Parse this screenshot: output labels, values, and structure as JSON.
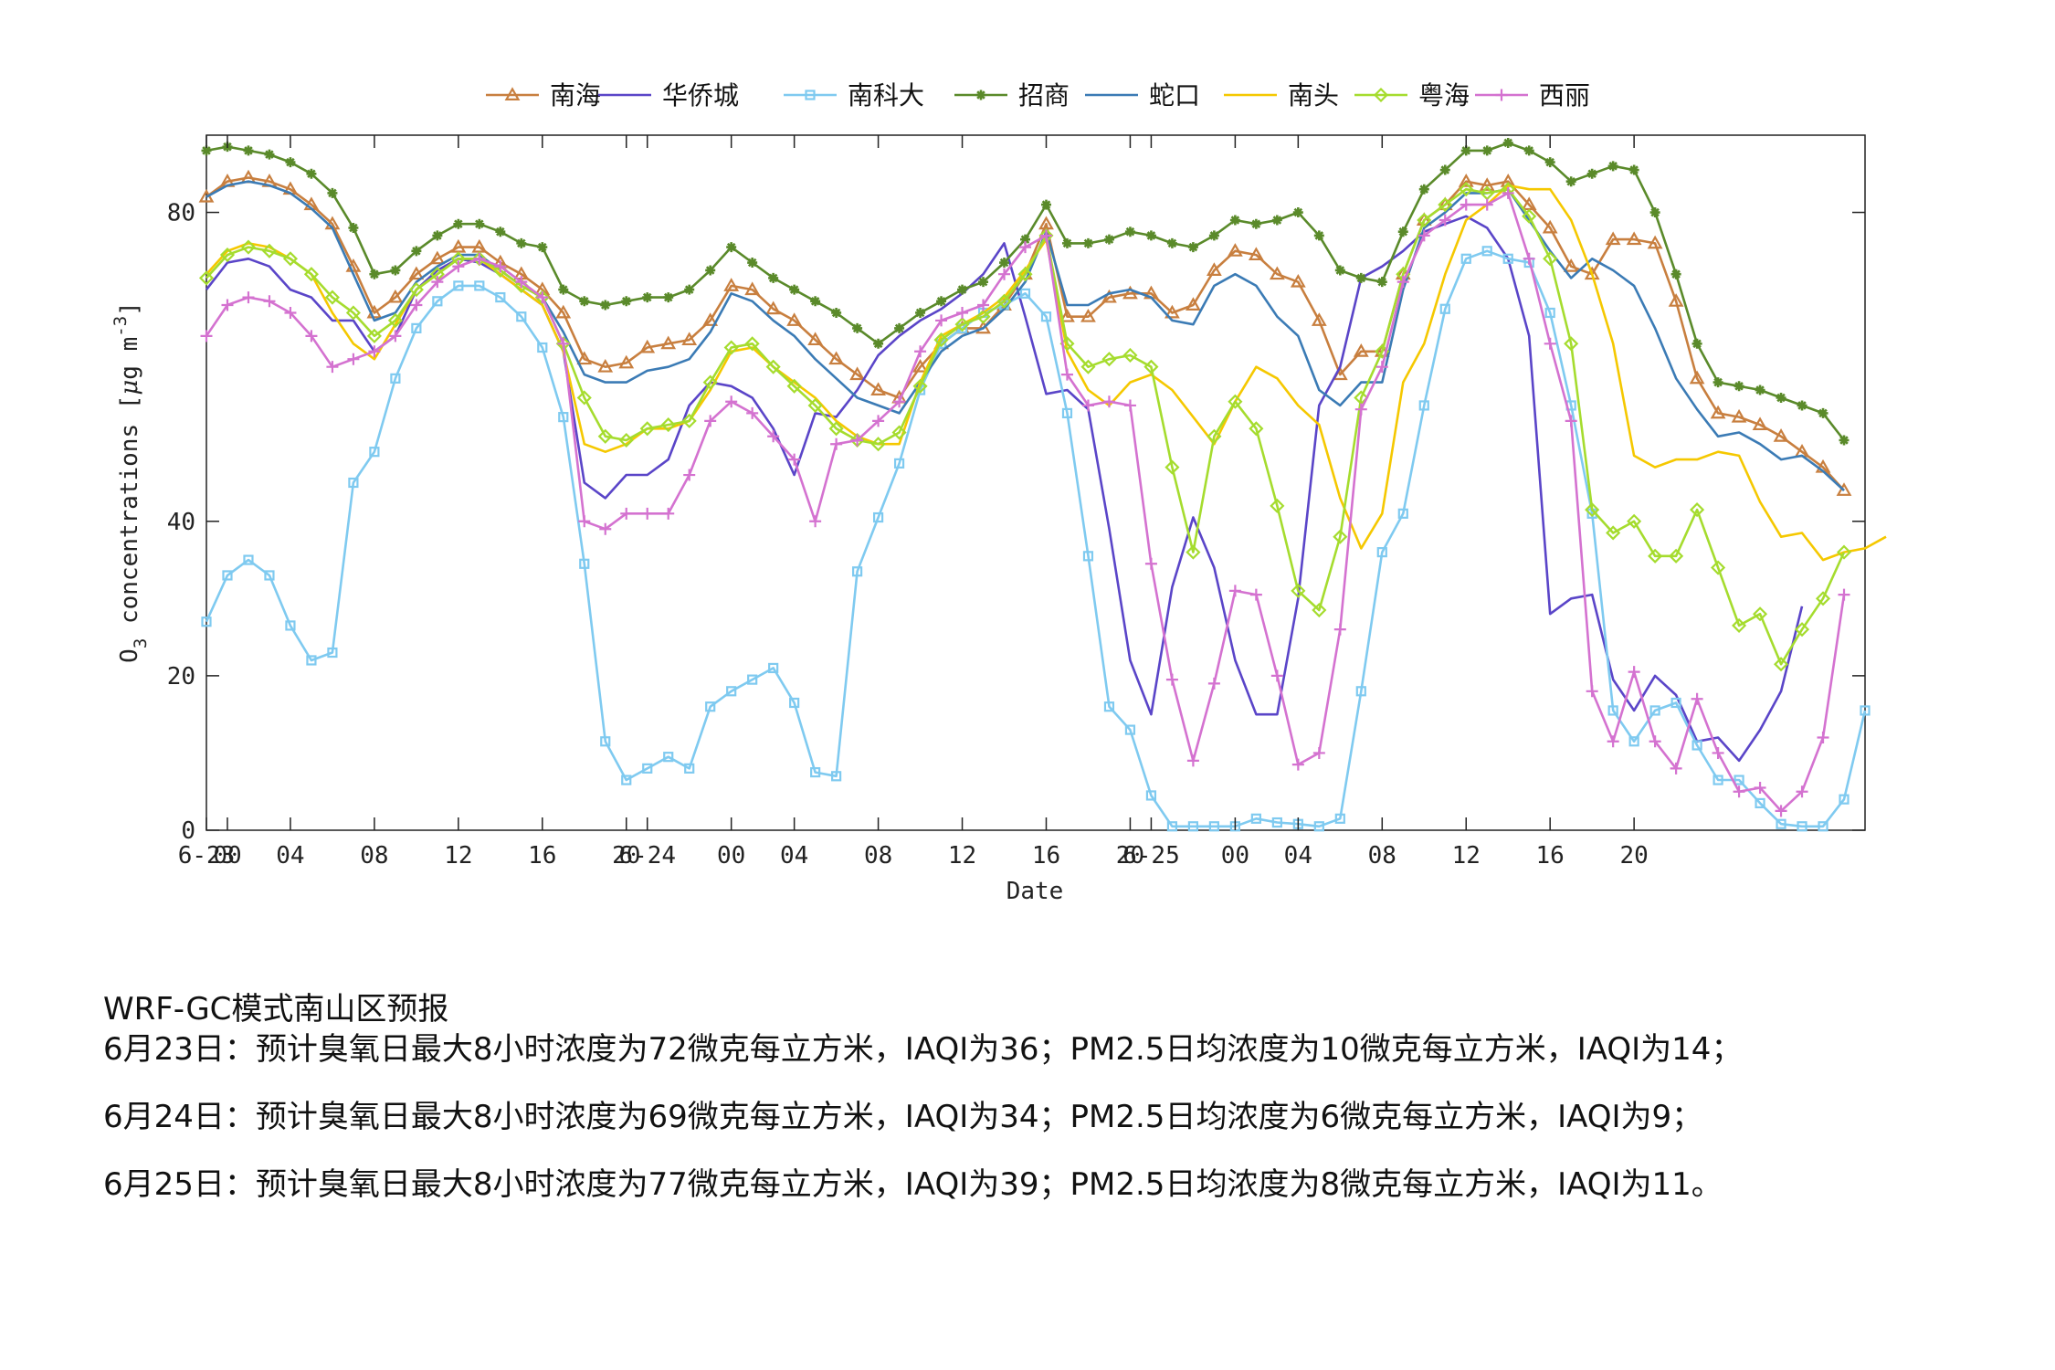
{
  "chart_data": {
    "type": "line",
    "ylabel": "O_3 concentrations [μg m^-3]",
    "xlabel": "Date",
    "ylim": [
      0,
      90
    ],
    "yticks": [
      0,
      20,
      40,
      80
    ],
    "x_tick_labels": [
      {
        "h": 0,
        "label": "6-23"
      },
      {
        "h": 1,
        "label": "00"
      },
      {
        "h": 4,
        "label": "04"
      },
      {
        "h": 8,
        "label": "08"
      },
      {
        "h": 12,
        "label": "12"
      },
      {
        "h": 16,
        "label": "16"
      },
      {
        "h": 20,
        "label": "20"
      },
      {
        "h": 21,
        "label": "6-24"
      },
      {
        "h": 25,
        "label": "00"
      },
      {
        "h": 28,
        "label": "04"
      },
      {
        "h": 32,
        "label": "08"
      },
      {
        "h": 36,
        "label": "12"
      },
      {
        "h": 40,
        "label": "16"
      },
      {
        "h": 44,
        "label": "20"
      },
      {
        "h": 45,
        "label": "6-25"
      },
      {
        "h": 49,
        "label": "00"
      },
      {
        "h": 52,
        "label": "04"
      },
      {
        "h": 56,
        "label": "08"
      },
      {
        "h": 60,
        "label": "12"
      },
      {
        "h": 64,
        "label": "16"
      },
      {
        "h": 68,
        "label": "20"
      }
    ],
    "x_range_hours": [
      0,
      79
    ],
    "grid": false,
    "legend_position": "top",
    "series": [
      {
        "name": "南海",
        "color": "#c87f3f",
        "marker": "triangle",
        "values": [
          82,
          84,
          84.5,
          84,
          83,
          81,
          78.5,
          73,
          67,
          69,
          72,
          74,
          75.5,
          75.5,
          73.5,
          72,
          70,
          67,
          61,
          60,
          60.5,
          62.5,
          63,
          63.5,
          66,
          70.5,
          70,
          67.5,
          66,
          63.5,
          61,
          59,
          57,
          56,
          60,
          63,
          65,
          65,
          68,
          72,
          78.5,
          66.5,
          66.5,
          69,
          69.5,
          69.5,
          67,
          68,
          72.5,
          75,
          74.5,
          72,
          71,
          66,
          59,
          62,
          62,
          72,
          79,
          81,
          84,
          83.5,
          84,
          81,
          78,
          73,
          72,
          76.5,
          76.5,
          76,
          68.5,
          58.5,
          54,
          53.5,
          52.5,
          51,
          49,
          47,
          44
        ]
      },
      {
        "name": "华侨城",
        "color": "#5a45c8",
        "values": [
          70,
          73.5,
          74,
          73,
          70,
          69,
          66,
          66,
          62,
          64,
          70,
          72.5,
          74,
          73.5,
          72,
          70,
          68,
          62,
          45,
          43,
          46,
          46,
          48,
          55,
          58,
          57.5,
          56,
          52,
          46,
          54,
          53.5,
          57,
          61.5,
          64,
          66,
          67.5,
          69.5,
          72,
          76,
          66.5,
          56.5,
          57,
          54.5,
          39,
          22,
          15,
          31.5,
          40.5,
          34,
          22,
          15,
          15,
          30,
          55,
          60,
          71.5,
          73,
          75,
          77.5,
          78.5,
          79.5,
          78,
          74,
          64,
          28,
          30,
          30.5,
          19.5,
          15.5,
          20,
          17.5,
          11.5,
          12,
          9,
          13,
          18,
          29
        ]
      },
      {
        "name": "南科大",
        "color": "#7fcaf0",
        "marker": "square",
        "values": [
          27,
          33,
          35,
          33,
          26.5,
          22,
          23,
          45,
          49,
          58.5,
          65,
          68.5,
          70.5,
          70.5,
          69,
          66.5,
          62.5,
          53.5,
          34.5,
          11.5,
          6.5,
          8,
          9.5,
          8,
          16,
          18,
          19.5,
          21,
          16.5,
          7.5,
          7,
          33.5,
          40.5,
          47.5,
          57,
          63,
          65,
          67,
          68,
          69.5,
          66.5,
          54,
          35.5,
          16,
          13,
          4.5,
          0.5,
          0.5,
          0.5,
          0.5,
          1.5,
          1,
          0.8,
          0.5,
          1.5,
          18,
          36,
          41,
          55,
          67.5,
          74,
          75,
          74,
          73.5,
          67,
          55,
          41,
          15.5,
          11.5,
          15.5,
          16.5,
          11,
          6.5,
          6.5,
          3.5,
          0.8,
          0.5,
          0.5,
          4,
          15.5
        ]
      },
      {
        "name": "招商",
        "color": "#5a8a2a",
        "marker": "star",
        "values": [
          88,
          88.5,
          88,
          87.5,
          86.5,
          85,
          82.5,
          78,
          72,
          72.5,
          75,
          77,
          78.5,
          78.5,
          77.5,
          76,
          75.5,
          70,
          68.5,
          68,
          68.5,
          69,
          69,
          70,
          72.5,
          75.5,
          73.5,
          71.5,
          70,
          68.5,
          67,
          65,
          63,
          65,
          67,
          68.5,
          70,
          71,
          73.5,
          76.5,
          81,
          76,
          76,
          76.5,
          77.5,
          77,
          76,
          75.5,
          77,
          79,
          78.5,
          79,
          80,
          77,
          72.5,
          71.5,
          71,
          77.5,
          83,
          85.5,
          88,
          88,
          89,
          88,
          86.5,
          84,
          85,
          86,
          85.5,
          80,
          72,
          63,
          58,
          57.5,
          57,
          56,
          55,
          54,
          50.5
        ]
      },
      {
        "name": "蛇口",
        "color": "#3b7bb5",
        "values": [
          82,
          83.5,
          84,
          83.5,
          82.5,
          80.5,
          78,
          72,
          66,
          67,
          71,
          73,
          74.5,
          74.5,
          72.5,
          70.5,
          69,
          64.5,
          59,
          58,
          58,
          59.5,
          60,
          61,
          64.5,
          69.5,
          68.5,
          66,
          64,
          61,
          58.5,
          56,
          55,
          54,
          58,
          62,
          64,
          65,
          67.5,
          71,
          77.5,
          68,
          68,
          69.5,
          70,
          69,
          66,
          65.5,
          70.5,
          72,
          70.5,
          66.5,
          64,
          57,
          55,
          58,
          58,
          70,
          78,
          80,
          82.5,
          82.5,
          83,
          79,
          75,
          71.5,
          74,
          72.5,
          70.5,
          65,
          58.5,
          54.5,
          51,
          51.5,
          50,
          48,
          48.5,
          46.5,
          44
        ]
      },
      {
        "name": "南头",
        "color": "#f5c800",
        "values": [
          72,
          75,
          76,
          75.5,
          74,
          72,
          67,
          63,
          61,
          65.5,
          70,
          72,
          74,
          74,
          72,
          70,
          68,
          62,
          50,
          49,
          50,
          52,
          52,
          53,
          57,
          62,
          62.5,
          60,
          58,
          56,
          53,
          51,
          50,
          50,
          58,
          64,
          65.5,
          67,
          69,
          72.5,
          76.5,
          62,
          57,
          55,
          58,
          59,
          57,
          53.5,
          50,
          55.5,
          60,
          58.5,
          55,
          52.5,
          43,
          36.5,
          41,
          58,
          63,
          72,
          79,
          81,
          83.5,
          83,
          83,
          79,
          72,
          63,
          48.5,
          47,
          48,
          48,
          49,
          48.5,
          42.5,
          38,
          38.5,
          35,
          36,
          36.5,
          38
        ]
      },
      {
        "name": "粤海",
        "color": "#a5dc2e",
        "marker": "diamond",
        "values": [
          71.5,
          74.5,
          75.5,
          75,
          74,
          72,
          69,
          67,
          64,
          66,
          70,
          72,
          74,
          74,
          72.5,
          70.5,
          69,
          63,
          56,
          51,
          50.5,
          52,
          52.5,
          53,
          58,
          62.5,
          63,
          60,
          57.5,
          55,
          52,
          50.5,
          50,
          51.5,
          57.5,
          63.5,
          65.5,
          66.5,
          68.5,
          72,
          77,
          63,
          60,
          61,
          61.5,
          60,
          47,
          36,
          51,
          55.5,
          52,
          42,
          31,
          28.5,
          38,
          56,
          62,
          72,
          79,
          81,
          83,
          82.5,
          83,
          79.5,
          74,
          63,
          41.5,
          38.5,
          40,
          35.5,
          35.5,
          41.5,
          34,
          26.5,
          28,
          21.5,
          26,
          30,
          36
        ]
      },
      {
        "name": "西丽",
        "color": "#d472d0",
        "marker": "plus",
        "values": [
          64,
          68,
          69,
          68.5,
          67,
          64,
          60,
          61,
          62,
          64,
          68,
          71,
          73,
          74,
          73,
          71,
          69,
          63,
          40,
          39,
          41,
          41,
          41,
          46,
          53,
          55.5,
          54,
          51,
          48,
          40,
          50,
          50.5,
          53,
          55.5,
          62,
          66,
          67,
          68,
          72,
          75.5,
          77,
          59,
          55,
          55.5,
          55,
          34.5,
          19.5,
          9,
          19,
          31,
          30.5,
          20,
          8.5,
          10,
          26,
          54.5,
          60,
          71,
          77,
          79,
          81,
          81,
          82.5,
          74,
          63,
          53,
          18,
          11.5,
          20.5,
          11.5,
          8,
          17,
          10,
          5,
          5.5,
          2.5,
          5,
          12,
          30.5
        ]
      }
    ]
  },
  "forecast": {
    "header": "WRF-GC模式南山区预报",
    "lines": [
      "6月23日：预计臭氧日最大8小时浓度为72微克每立方米，IAQI为36；PM2.5日均浓度为10微克每立方米，IAQI为14；",
      "6月24日：预计臭氧日最大8小时浓度为69微克每立方米，IAQI为34；PM2.5日均浓度为6微克每立方米，IAQI为9；",
      "6月25日：预计臭氧日最大8小时浓度为77微克每立方米，IAQI为39；PM2.5日均浓度为8微克每立方米，IAQI为11。"
    ]
  }
}
